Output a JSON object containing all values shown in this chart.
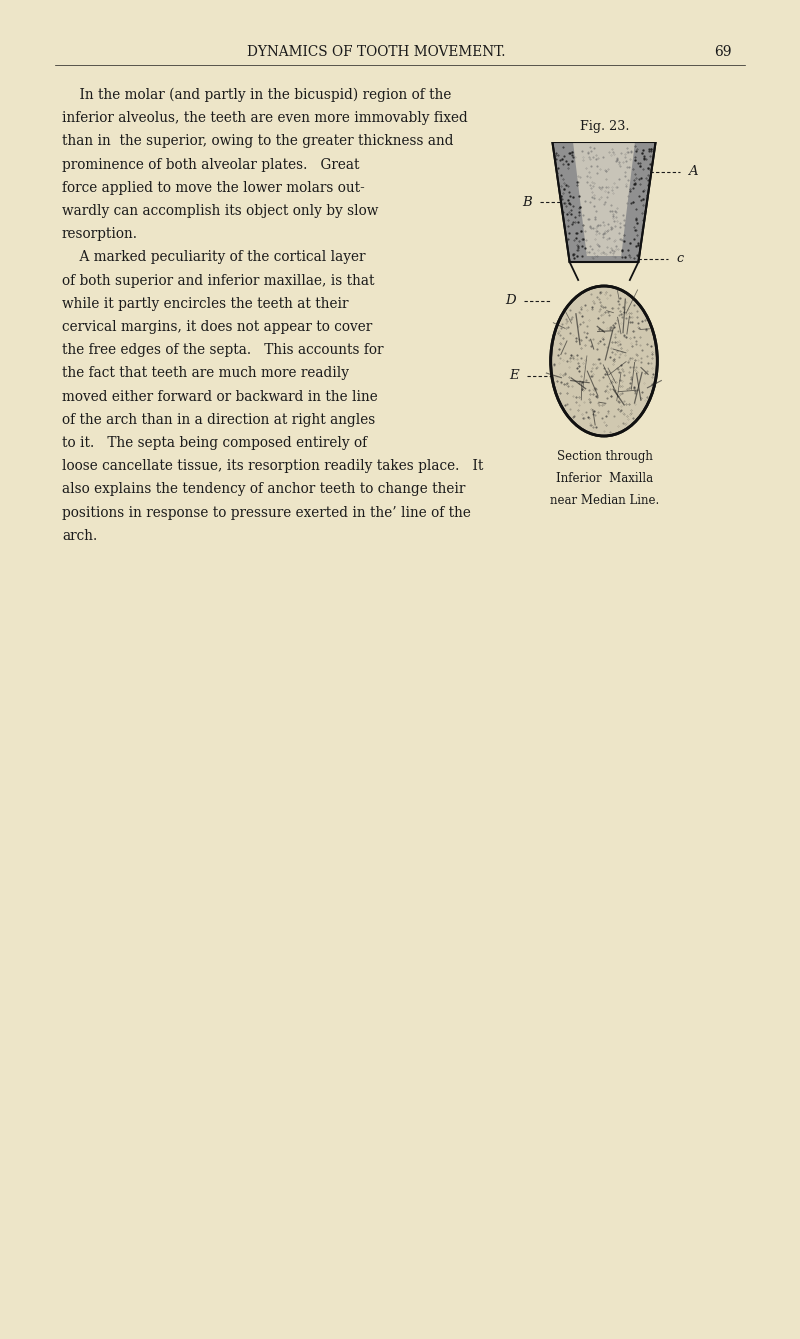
{
  "background_color": "#EDE5C8",
  "page_width": 8.0,
  "page_height": 13.39,
  "header_text": "DYNAMICS OF TOOTH MOVEMENT.",
  "header_page_num": "69",
  "fig_label": "Fig. 23.",
  "fig_caption_line1": "Section through",
  "fig_caption_line2": "Inferior  Maxilla",
  "fig_caption_line3": "near Median Line.",
  "label_A": "A",
  "label_B": "B",
  "label_C": "c",
  "label_D": "D",
  "label_E": "E",
  "text_color": "#1a1a1a",
  "body_text": [
    "    In the molar (and partly in the bicuspid) region of the",
    "inferior alveolus, the teeth are even more immovably fixed",
    "than in  the superior, owing to the greater thickness and",
    "prominence of both alveolar plates.   Great",
    "force applied to move the lower molars out-",
    "wardly can accomplish its object only by slow",
    "resorption.",
    "    A marked peculiarity of the cortical layer",
    "of both superior and inferior maxillae, is that",
    "while it partly encircles the teeth at their",
    "cervical margins, it does not appear to cover",
    "the free edges of the septa.   This accounts for",
    "the fact that teeth are much more readily",
    "moved either forward or backward in the line",
    "of the arch than in a direction at right angles",
    "to it.   The septa being composed entirely of",
    "loose cancellate tissue, its resorption readily takes place.   It",
    "also explains the tendency of anchor teeth to change their",
    "positions in response to pressure exerted in the’ line of the",
    "arch."
  ]
}
